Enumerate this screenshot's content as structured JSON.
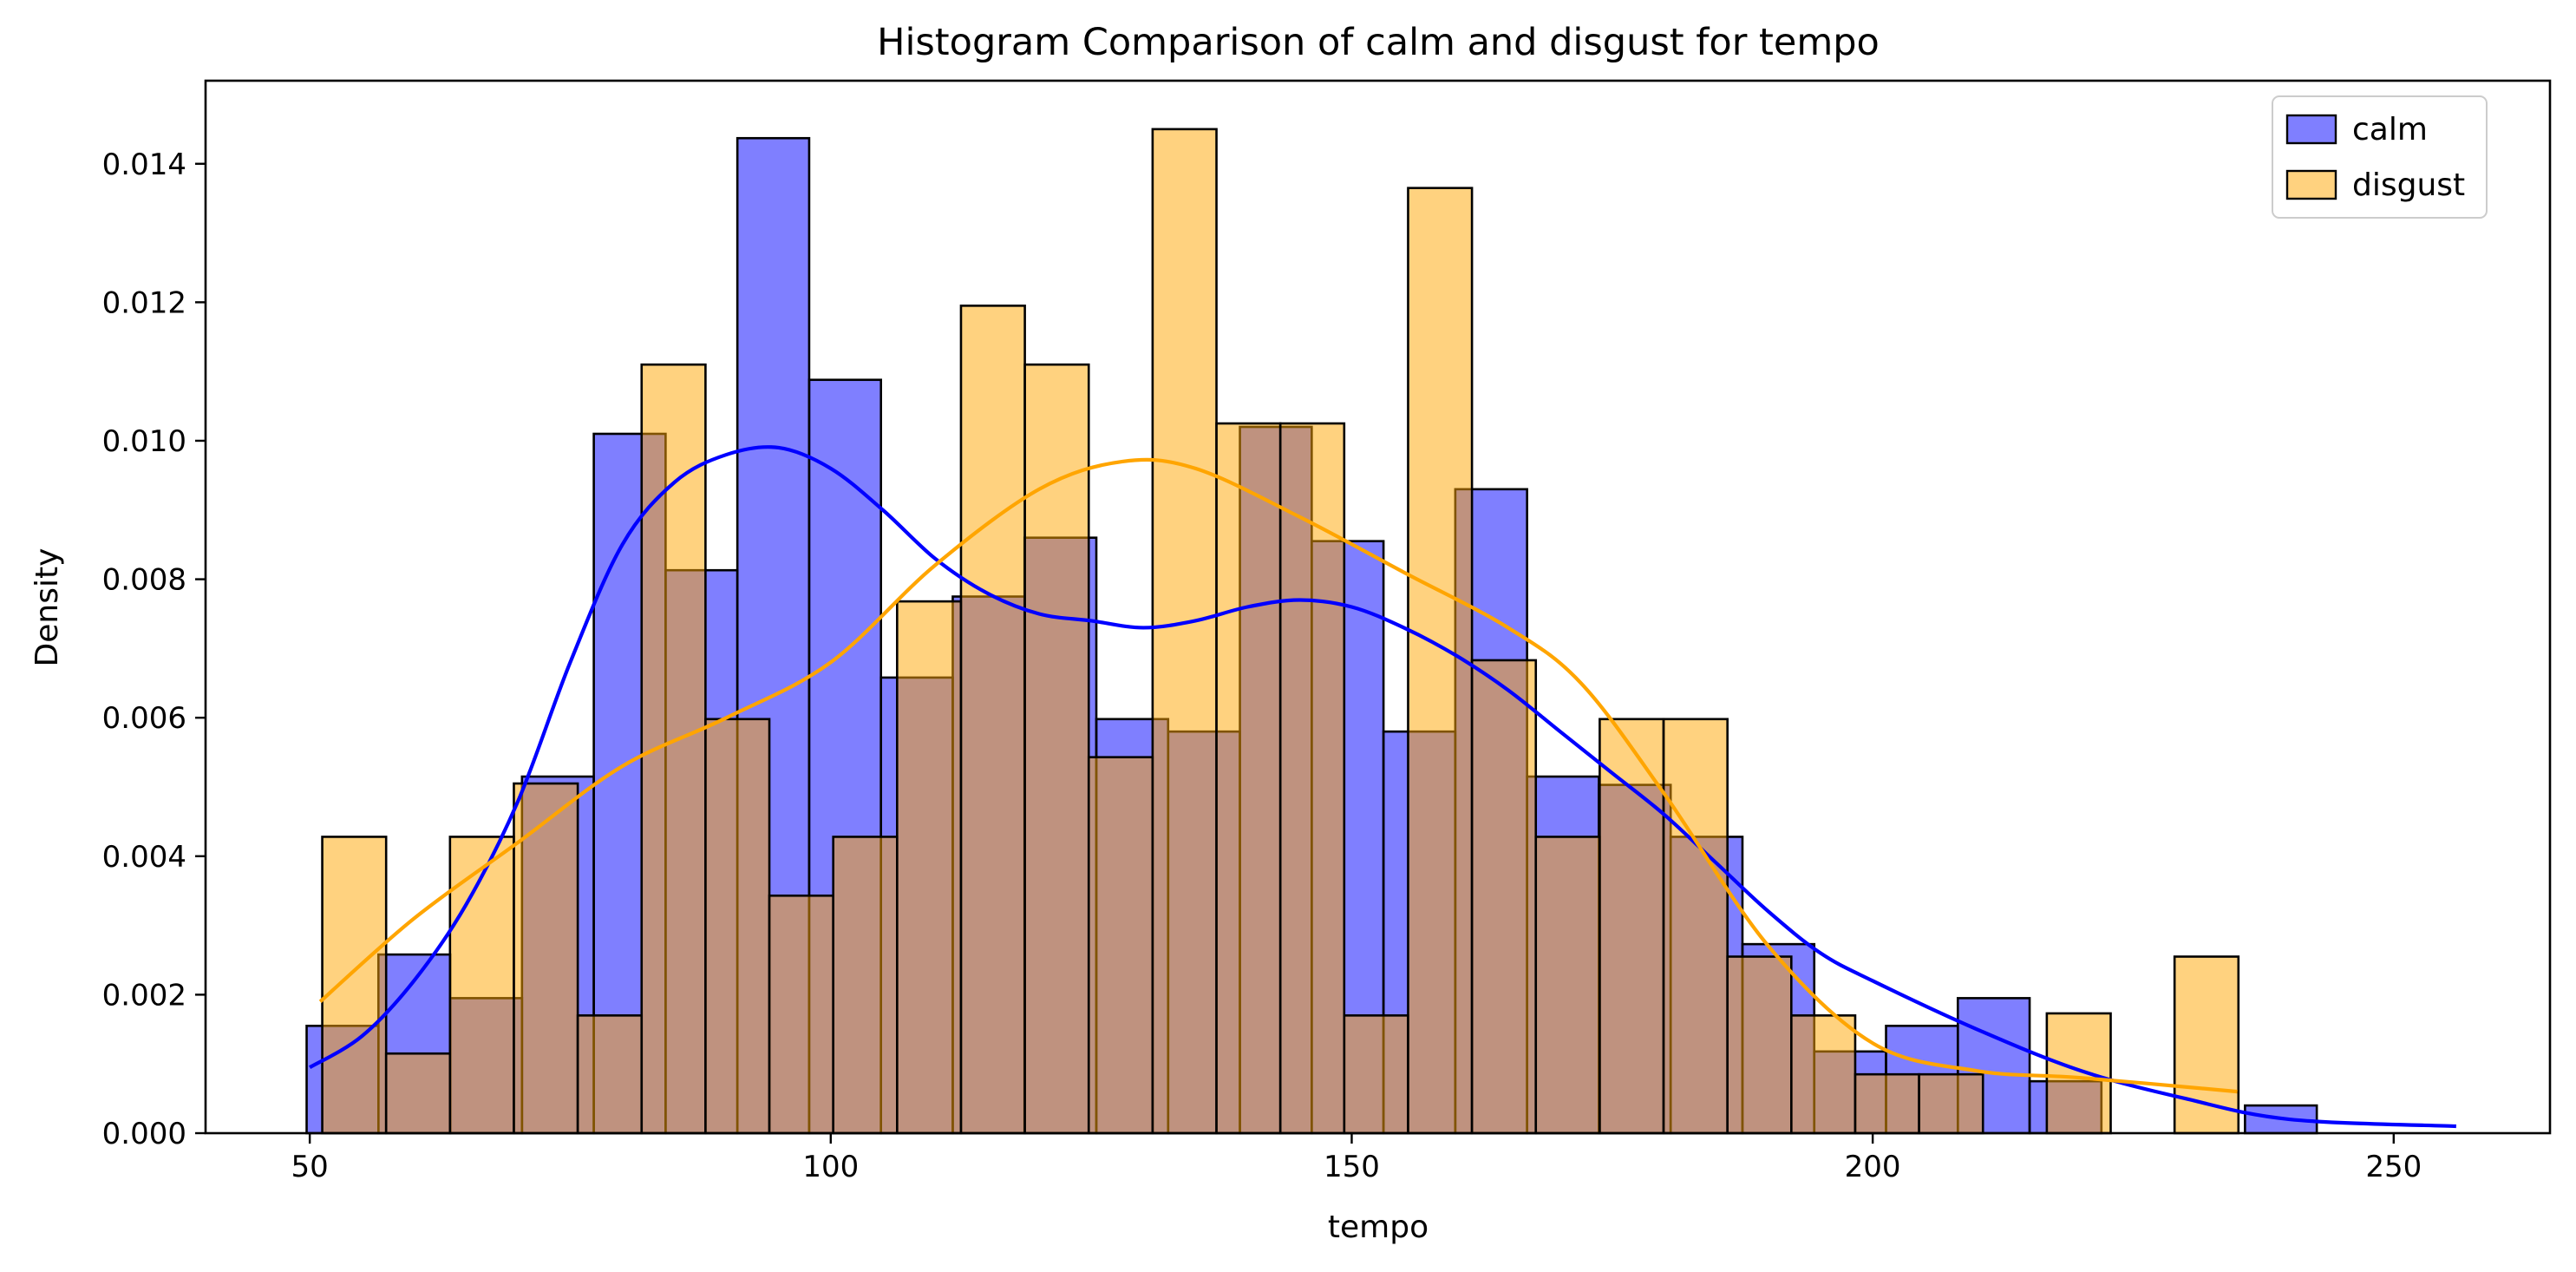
{
  "chart_data": {
    "type": "histogram",
    "title": "Histogram Comparison of calm and disgust for tempo",
    "xlabel": "tempo",
    "ylabel": "Density",
    "xlim": [
      40,
      265
    ],
    "ylim": [
      0,
      0.0152
    ],
    "xticks": [
      50,
      100,
      150,
      200,
      250
    ],
    "xtick_labels": [
      "50",
      "100",
      "150",
      "200",
      "250"
    ],
    "yticks": [
      0,
      0.002,
      0.004,
      0.006,
      0.008,
      0.01,
      0.012,
      0.014
    ],
    "ytick_labels": [
      "0.000",
      "0.002",
      "0.004",
      "0.006",
      "0.008",
      "0.010",
      "0.012",
      "0.014"
    ],
    "grid": false,
    "legend_position": "top-right",
    "series": [
      {
        "name": "calm",
        "color": "#0000ff",
        "fill_opacity": 0.5,
        "bin_start": 49.7,
        "bin_width": 6.89,
        "values": [
          0.00155,
          0.00258,
          0.00195,
          0.00515,
          0.0101,
          0.00813,
          0.01437,
          0.01088,
          0.00658,
          0.00775,
          0.0086,
          0.00598,
          0.0058,
          0.0102,
          0.00855,
          0.0058,
          0.0093,
          0.00515,
          0.00503,
          0.00428,
          0.00273,
          0.00118,
          0.00155,
          0.00195,
          0.00075,
          0.0,
          0.0,
          0.0004
        ],
        "kde_x": [
          50,
          55,
          60,
          65,
          70,
          75,
          80,
          85,
          90,
          95,
          100,
          105,
          110,
          115,
          120,
          125,
          130,
          135,
          140,
          145,
          150,
          155,
          160,
          165,
          170,
          175,
          180,
          185,
          190,
          195,
          200,
          210,
          220,
          230,
          240,
          256
        ],
        "kde_y": [
          0.00095,
          0.0014,
          0.0022,
          0.0033,
          0.0048,
          0.0068,
          0.0085,
          0.0094,
          0.0098,
          0.0099,
          0.0096,
          0.009,
          0.0083,
          0.0078,
          0.0075,
          0.0074,
          0.0073,
          0.0074,
          0.0076,
          0.0077,
          0.0076,
          0.0073,
          0.0069,
          0.0064,
          0.0058,
          0.0052,
          0.0046,
          0.0039,
          0.0032,
          0.0026,
          0.0022,
          0.0015,
          0.0009,
          0.0005,
          0.0002,
          0.0001
        ]
      },
      {
        "name": "disgust",
        "color": "#ffa500",
        "fill_opacity": 0.5,
        "bin_start": 51.2,
        "bin_width": 6.13,
        "values": [
          0.00428,
          0.00115,
          0.00428,
          0.00505,
          0.0017,
          0.0111,
          0.00598,
          0.00343,
          0.00428,
          0.00768,
          0.01195,
          0.0111,
          0.00543,
          0.0145,
          0.01025,
          0.01025,
          0.0017,
          0.01365,
          0.00683,
          0.00428,
          0.00598,
          0.00598,
          0.00255,
          0.0017,
          0.00085,
          0.00085,
          0.0,
          0.00173,
          0.0,
          0.00255
        ],
        "kde_x": [
          51,
          60,
          70,
          80,
          90,
          100,
          110,
          120,
          128,
          135,
          145,
          155,
          165,
          172,
          180,
          190,
          200,
          210,
          220,
          235
        ],
        "kde_y": [
          0.0019,
          0.0031,
          0.0042,
          0.0053,
          0.006,
          0.0068,
          0.0082,
          0.0093,
          0.0097,
          0.0096,
          0.0089,
          0.0081,
          0.0073,
          0.0065,
          0.0049,
          0.0027,
          0.0013,
          0.0009,
          0.0008,
          0.0006
        ]
      }
    ]
  }
}
